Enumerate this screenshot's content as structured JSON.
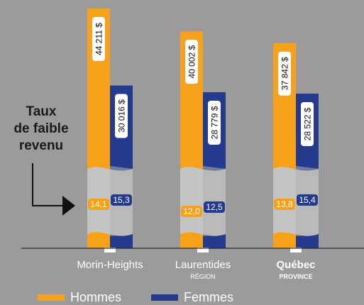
{
  "side_note": {
    "line1": "Taux",
    "line2": "de faible",
    "line3": "revenu"
  },
  "legend": [
    {
      "label": "Hommes",
      "color": "#f7a11a"
    },
    {
      "label": "Femmes",
      "color": "#243a8c"
    }
  ],
  "colors": {
    "men": "#f7a11a",
    "women": "#243a8c",
    "band": "#c4c4c4",
    "band_dark": "#b0b0b0",
    "background": "#9b9b9b"
  },
  "chart_data": {
    "type": "bar",
    "series": [
      {
        "name": "Hommes",
        "values": [
          44211,
          40002,
          37842
        ],
        "labels": [
          "44 211 $",
          "40 002 $",
          "37 842 $"
        ]
      },
      {
        "name": "Femmes",
        "values": [
          30016,
          28779,
          28522
        ],
        "labels": [
          "30 016 $",
          "28 779 $",
          "28 522 $"
        ]
      }
    ],
    "categories": [
      {
        "name": "Morin-Heights",
        "sub": "",
        "bold": false
      },
      {
        "name": "Laurentides",
        "sub": "RÉGION",
        "bold": false
      },
      {
        "name": "Québec",
        "sub": "PROVINCE",
        "bold": true
      }
    ],
    "low_income_rate": {
      "men": [
        14.1,
        12.0,
        13.8
      ],
      "women": [
        15.3,
        12.5,
        15.4
      ],
      "men_labels": [
        "14,1",
        "12,0",
        "13,8"
      ],
      "women_labels": [
        "15,3",
        "12,5",
        "15,4"
      ]
    },
    "ylim": [
      0,
      44211
    ],
    "xlabel": "",
    "ylabel": "",
    "grid": false
  }
}
